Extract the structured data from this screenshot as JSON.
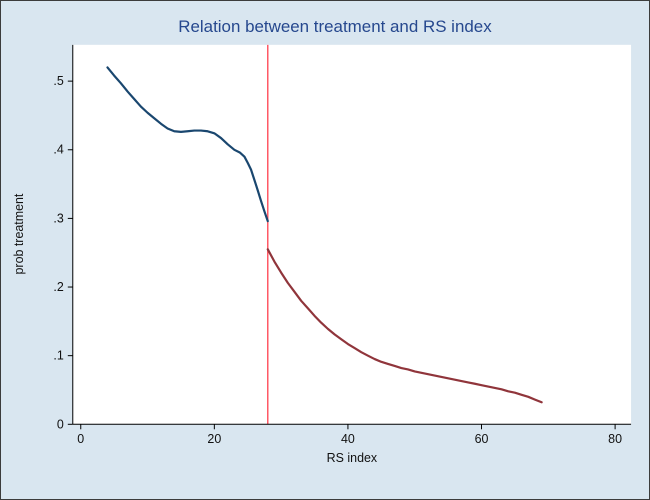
{
  "window": {
    "type": "stata-style-graph"
  },
  "colors": {
    "figure_background": "#d9e6f0",
    "plot_background": "#ffffff",
    "title": "#26488e",
    "axis": "#000000",
    "text": "#111111",
    "cutoff_line": "#ff4d5a"
  },
  "chart_data": {
    "type": "line",
    "title": "Relation between treatment and RS index",
    "xlabel": "RS index",
    "ylabel": "prob treatment",
    "xlim": [
      0,
      80
    ],
    "ylim": [
      0,
      0.55
    ],
    "x_ticks": [
      0,
      20,
      40,
      60,
      80
    ],
    "x_tick_labels": [
      "0",
      "20",
      "40",
      "60",
      "80"
    ],
    "y_ticks": [
      0,
      0.1,
      0.2,
      0.3,
      0.4,
      0.5
    ],
    "y_tick_labels": [
      "0",
      ".1",
      ".2",
      ".3",
      ".4",
      ".5"
    ],
    "grid": false,
    "legend": "none",
    "cutoff_x": 28,
    "series": [
      {
        "id": "below-cutoff",
        "name": "prob treatment (left of cutoff)",
        "color": "#1a476f",
        "points": [
          [
            4,
            0.52
          ],
          [
            5,
            0.508
          ],
          [
            6,
            0.497
          ],
          [
            7,
            0.485
          ],
          [
            8,
            0.474
          ],
          [
            9,
            0.463
          ],
          [
            10,
            0.454
          ],
          [
            11,
            0.446
          ],
          [
            12,
            0.438
          ],
          [
            13,
            0.431
          ],
          [
            14,
            0.427
          ],
          [
            15,
            0.426
          ],
          [
            16,
            0.427
          ],
          [
            17,
            0.428
          ],
          [
            18,
            0.428
          ],
          [
            19,
            0.427
          ],
          [
            20,
            0.424
          ],
          [
            21,
            0.417
          ],
          [
            22,
            0.408
          ],
          [
            23,
            0.4
          ],
          [
            23.8,
            0.396
          ],
          [
            24.5,
            0.39
          ],
          [
            25,
            0.381
          ],
          [
            25.5,
            0.371
          ],
          [
            26,
            0.356
          ],
          [
            26.5,
            0.341
          ],
          [
            27,
            0.325
          ],
          [
            27.5,
            0.31
          ],
          [
            28,
            0.296
          ]
        ]
      },
      {
        "id": "above-cutoff",
        "name": "prob treatment (right of cutoff)",
        "color": "#90353b",
        "points": [
          [
            28,
            0.255
          ],
          [
            29,
            0.237
          ],
          [
            30,
            0.221
          ],
          [
            31,
            0.206
          ],
          [
            32,
            0.193
          ],
          [
            33,
            0.18
          ],
          [
            34,
            0.169
          ],
          [
            35,
            0.158
          ],
          [
            36,
            0.148
          ],
          [
            37,
            0.139
          ],
          [
            38,
            0.131
          ],
          [
            39,
            0.124
          ],
          [
            40,
            0.117
          ],
          [
            41,
            0.111
          ],
          [
            42,
            0.105
          ],
          [
            43,
            0.1
          ],
          [
            44,
            0.095
          ],
          [
            45,
            0.091
          ],
          [
            46,
            0.088
          ],
          [
            47,
            0.085
          ],
          [
            48,
            0.082
          ],
          [
            49,
            0.08
          ],
          [
            50,
            0.077
          ],
          [
            51,
            0.075
          ],
          [
            52,
            0.073
          ],
          [
            53,
            0.071
          ],
          [
            54,
            0.069
          ],
          [
            55,
            0.067
          ],
          [
            56,
            0.065
          ],
          [
            57,
            0.063
          ],
          [
            58,
            0.061
          ],
          [
            59,
            0.059
          ],
          [
            60,
            0.057
          ],
          [
            61,
            0.055
          ],
          [
            62,
            0.053
          ],
          [
            63,
            0.051
          ],
          [
            64,
            0.048
          ],
          [
            65,
            0.046
          ],
          [
            66,
            0.043
          ],
          [
            67,
            0.04
          ],
          [
            68,
            0.036
          ],
          [
            69,
            0.032
          ]
        ]
      }
    ]
  }
}
